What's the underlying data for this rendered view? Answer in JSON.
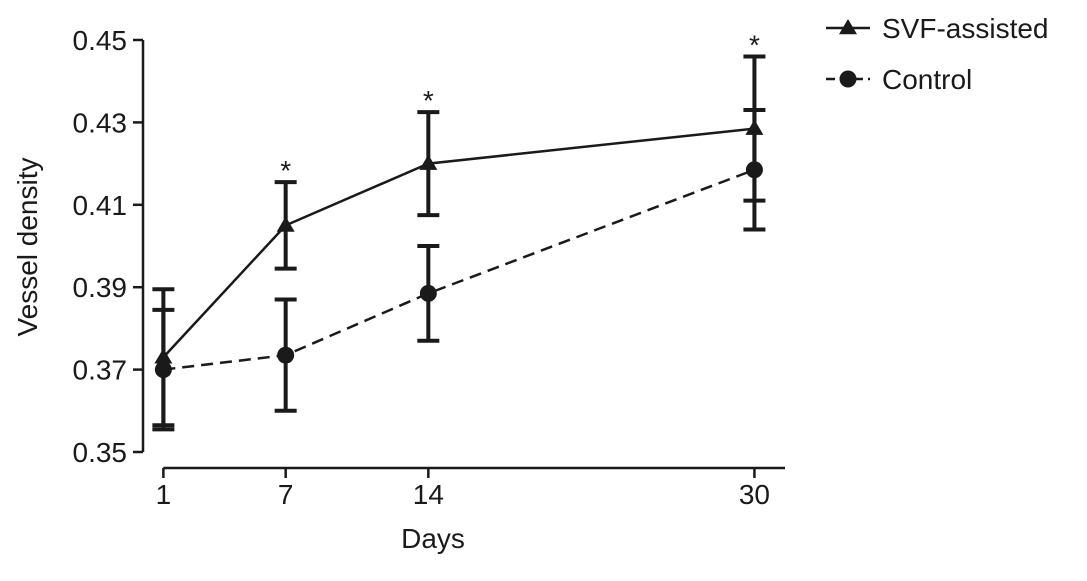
{
  "chart_data": {
    "type": "line",
    "xlabel": "Days",
    "ylabel": "Vessel density",
    "x": [
      1,
      7,
      14,
      30
    ],
    "x_tick_labels": [
      "1",
      "7",
      "14",
      "30"
    ],
    "xlim": [
      0,
      31.5
    ],
    "ylim": [
      0.35,
      0.45
    ],
    "yticks": [
      0.35,
      0.37,
      0.39,
      0.41,
      0.43,
      0.45
    ],
    "y_tick_labels": [
      "0.35",
      "0.37",
      "0.39",
      "0.41",
      "0.43",
      "0.45"
    ],
    "legend_position": "top-right",
    "grid": false,
    "series": [
      {
        "name": "SVF-assisted",
        "marker": "triangle",
        "line_style": "solid",
        "values": [
          0.373,
          0.405,
          0.42,
          0.4285
        ],
        "error": [
          0.0165,
          0.0105,
          0.0125,
          0.0175
        ],
        "significance": [
          "",
          "*",
          "*",
          "*"
        ]
      },
      {
        "name": "Control",
        "marker": "circle",
        "line_style": "dashed",
        "values": [
          0.37,
          0.3735,
          0.3885,
          0.4185
        ],
        "error": [
          0.0145,
          0.0135,
          0.0115,
          0.0145
        ],
        "significance": [
          "",
          "",
          "",
          ""
        ]
      }
    ]
  }
}
